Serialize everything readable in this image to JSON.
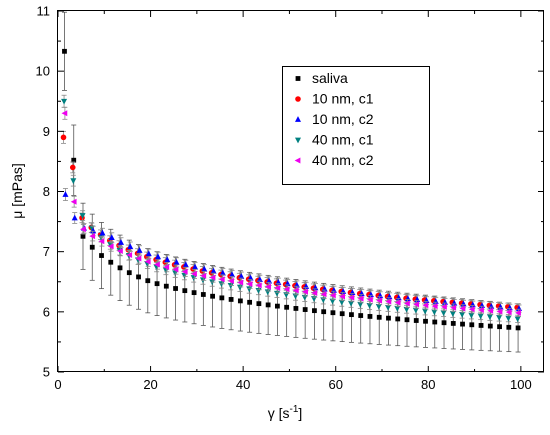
{
  "chart_data": {
    "type": "scatter",
    "title": "",
    "xlabel_main": "γ [s",
    "xlabel_sup": "-1",
    "xlabel_tail": "]",
    "ylabel": "μ [mPas]",
    "xlim": [
      0,
      105
    ],
    "ylim": [
      5,
      11
    ],
    "x_ticks": [
      0,
      20,
      40,
      60,
      80,
      100
    ],
    "y_ticks": [
      5,
      6,
      7,
      8,
      9,
      10,
      11
    ],
    "legend_position": "top-right",
    "grid": false,
    "error_bars": true,
    "series": [
      {
        "name": "saliva",
        "marker": "square",
        "color": "#000000",
        "mu_first": 10.33,
        "mu_second": 8.52,
        "mu_at_5": 7.3,
        "mu_at_10": 6.9,
        "mu_at_20": 6.5,
        "mu_at_50": 6.07,
        "mu_at_100": 5.73,
        "err_first": 0.65,
        "err_at_10": 0.55,
        "err_at_100": 0.4
      },
      {
        "name": "10 nm, c1",
        "marker": "circle",
        "color": "#ff0000",
        "mu_first": 8.9,
        "mu_second": 8.4,
        "mu_at_5": 7.6,
        "mu_at_10": 7.25,
        "mu_at_20": 6.9,
        "mu_at_50": 6.45,
        "mu_at_100": 6.07,
        "err_first": 0.1,
        "err_at_10": 0.08,
        "err_at_100": 0.06
      },
      {
        "name": "10 nm, c2",
        "marker": "triangle-up",
        "color": "#0000ff",
        "mu_first": 7.95,
        "mu_second": 7.56,
        "mu_at_5": 7.4,
        "mu_at_10": 7.3,
        "mu_at_20": 6.95,
        "mu_at_50": 6.46,
        "mu_at_100": 6.05,
        "err_first": 0.1,
        "err_at_10": 0.08,
        "err_at_100": 0.06
      },
      {
        "name": "40 nm, c1",
        "marker": "triangle-down",
        "color": "#008080",
        "mu_first": 9.5,
        "mu_second": 8.18,
        "mu_at_5": 7.65,
        "mu_at_10": 7.2,
        "mu_at_20": 6.78,
        "mu_at_50": 6.28,
        "mu_at_100": 5.88,
        "err_first": 0.1,
        "err_at_10": 0.08,
        "err_at_100": 0.06
      },
      {
        "name": "40 nm, c2",
        "marker": "triangle-left",
        "color": "#ee00ee",
        "mu_first": 9.3,
        "mu_second": 7.83,
        "mu_at_5": 7.4,
        "mu_at_10": 7.15,
        "mu_at_20": 6.82,
        "mu_at_50": 6.37,
        "mu_at_100": 5.98,
        "err_first": 0.1,
        "err_at_10": 0.08,
        "err_at_100": 0.06
      }
    ],
    "gamma_start": 1.4,
    "gamma_step": 2.0,
    "gamma_end": 100
  }
}
